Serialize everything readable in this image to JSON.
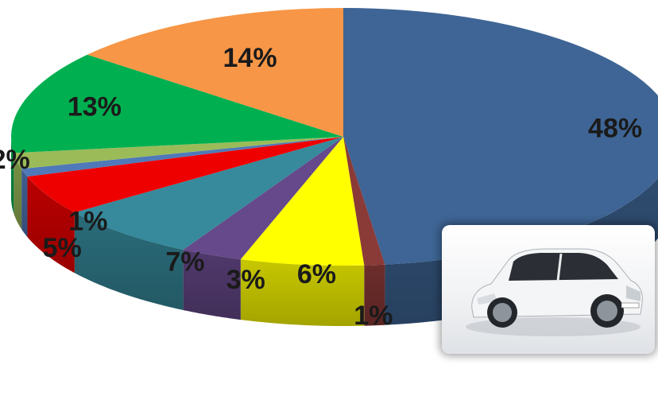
{
  "chart_data": {
    "type": "pie",
    "style": "3d",
    "slices": [
      {
        "label": "48%",
        "value": 48,
        "color": "#3e6595"
      },
      {
        "label": "1%",
        "value": 1,
        "color": "#8a3a37"
      },
      {
        "label": "6%",
        "value": 6,
        "color": "#ffff00"
      },
      {
        "label": "3%",
        "value": 3,
        "color": "#66498a"
      },
      {
        "label": "7%",
        "value": 7,
        "color": "#368a9c"
      },
      {
        "label": "5%",
        "value": 5,
        "color": "#ee0000"
      },
      {
        "label": "1%",
        "value": 1,
        "color": "#4f79b8"
      },
      {
        "label": "2%",
        "value": 2,
        "color": "#9bbb59"
      },
      {
        "label": "13%",
        "value": 13,
        "color": "#00b050"
      },
      {
        "label": "14%",
        "value": 14,
        "color": "#f79646"
      }
    ]
  },
  "image": {
    "name": "white hatchback car photo"
  }
}
